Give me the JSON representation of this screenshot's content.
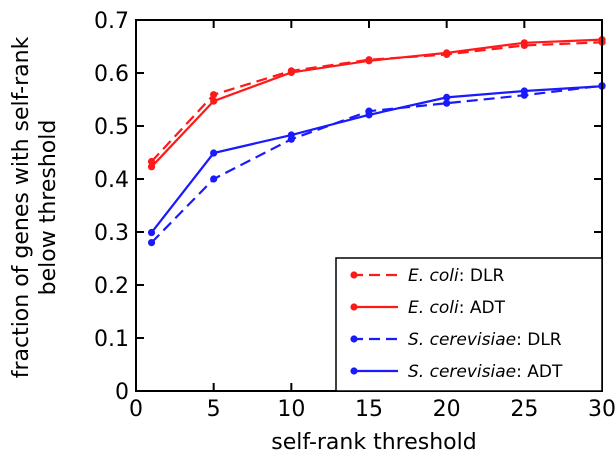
{
  "chart_data": {
    "type": "line",
    "xlabel": "self-rank threshold",
    "ylabel_line1": "fraction of genes with self-rank",
    "ylabel_line2": "below threshold",
    "xlim": [
      0,
      30
    ],
    "ylim": [
      0,
      0.7
    ],
    "xticks": [
      0,
      5,
      10,
      15,
      20,
      25,
      30
    ],
    "yticks": [
      0,
      0.1,
      0.2,
      0.3,
      0.4,
      0.5,
      0.6,
      0.7
    ],
    "xtick_labels": [
      "0",
      "5",
      "10",
      "15",
      "20",
      "25",
      "30"
    ],
    "ytick_labels": [
      "0",
      "0.1",
      "0.2",
      "0.3",
      "0.4",
      "0.5",
      "0.6",
      "0.7"
    ],
    "grid": false,
    "legend_position": "bottom-right",
    "x": [
      1,
      5,
      10,
      15,
      20,
      25,
      30
    ],
    "series": [
      {
        "name_italic": "E. coli",
        "name_rest": ": DLR",
        "color": "#ff1a1a",
        "dashed": true,
        "values": [
          0.433,
          0.559,
          0.604,
          0.625,
          0.635,
          0.652,
          0.658
        ]
      },
      {
        "name_italic": "E. coli",
        "name_rest": ": ADT",
        "color": "#ff1a1a",
        "dashed": false,
        "values": [
          0.423,
          0.547,
          0.601,
          0.623,
          0.638,
          0.657,
          0.663
        ]
      },
      {
        "name_italic": "S. cerevisiae",
        "name_rest": ": DLR",
        "color": "#1a1aff",
        "dashed": true,
        "values": [
          0.28,
          0.4,
          0.475,
          0.528,
          0.543,
          0.558,
          0.576
        ]
      },
      {
        "name_italic": "S. cerevisiae",
        "name_rest": ": ADT",
        "color": "#1a1aff",
        "dashed": false,
        "values": [
          0.299,
          0.449,
          0.483,
          0.521,
          0.554,
          0.566,
          0.575
        ]
      }
    ]
  }
}
